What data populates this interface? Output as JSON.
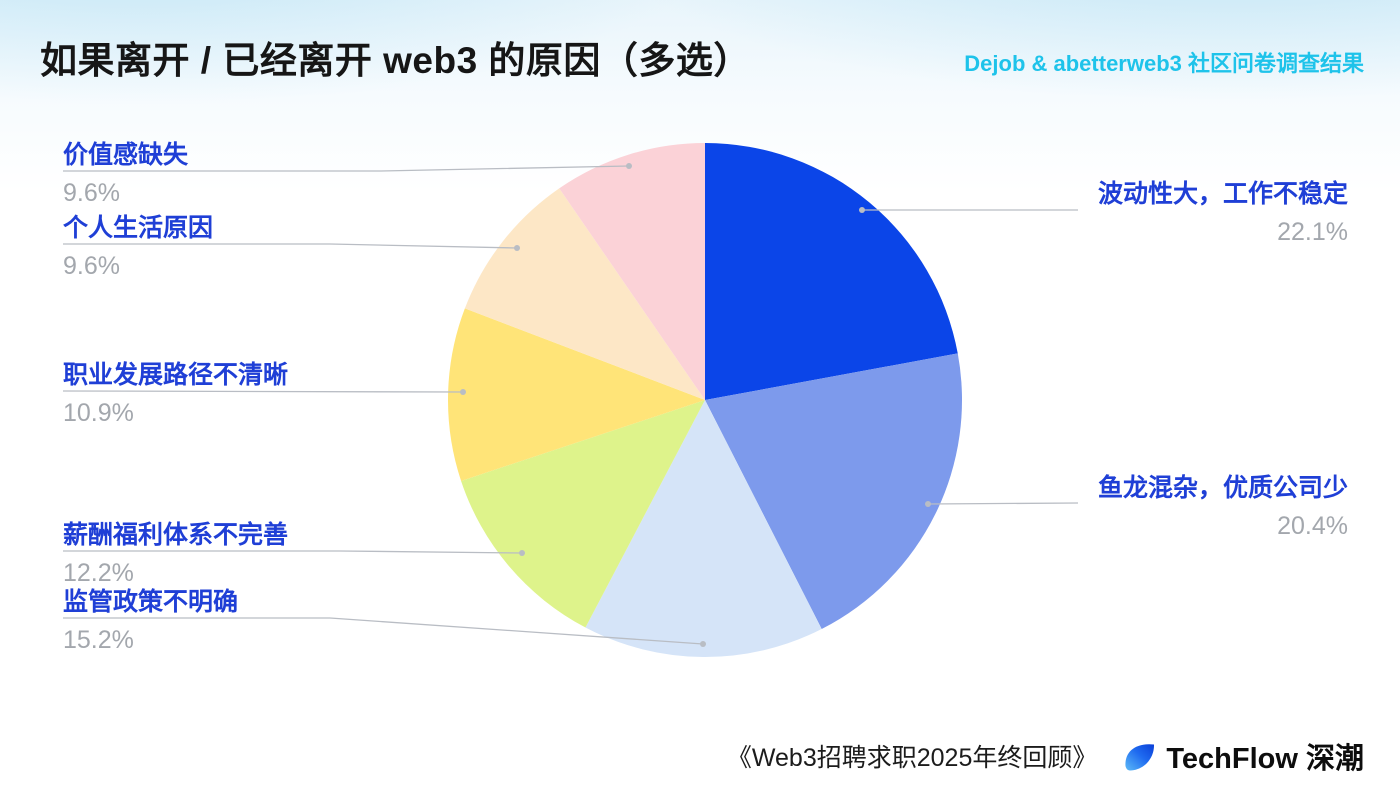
{
  "header": {
    "title": "如果离开 / 已经离开 web3 的原因（多选）",
    "subtitle": "Dejob & abetterweb3 社区问卷调查结果"
  },
  "chart_data": {
    "type": "pie",
    "title": "如果离开 / 已经离开 web3 的原因（多选）",
    "start_angle_deg": 0,
    "direction": "clockwise",
    "legend": "none",
    "slices": [
      {
        "label": "波动性大，工作不稳定",
        "value": 22.1,
        "percent_label": "22.1%",
        "color": "#0b45e8",
        "label_side": "right"
      },
      {
        "label": "鱼龙混杂，优质公司少",
        "value": 20.4,
        "percent_label": "20.4%",
        "color": "#7d9aec",
        "label_side": "right"
      },
      {
        "label": "监管政策不明确",
        "value": 15.2,
        "percent_label": "15.2%",
        "color": "#d5e4f8",
        "label_side": "left"
      },
      {
        "label": "薪酬福利体系不完善",
        "value": 12.2,
        "percent_label": "12.2%",
        "color": "#def38b",
        "label_side": "left"
      },
      {
        "label": "职业发展路径不清晰",
        "value": 10.9,
        "percent_label": "10.9%",
        "color": "#ffe478",
        "label_side": "left"
      },
      {
        "label": "个人生活原因",
        "value": 9.6,
        "percent_label": "9.6%",
        "color": "#fde7c6",
        "label_side": "left"
      },
      {
        "label": "价值感缺失",
        "value": 9.6,
        "percent_label": "9.6%",
        "color": "#fbd2d7",
        "label_side": "left"
      }
    ]
  },
  "footer": {
    "source": "《Web3招聘求职2025年终回顾》",
    "brand": "TechFlow 深潮"
  },
  "colors": {
    "label_blue": "#1f3fd6",
    "percent_gray": "#a3a7ad",
    "subtitle_cyan": "#1ec3ea",
    "leader_line": "#b9bdc4"
  }
}
